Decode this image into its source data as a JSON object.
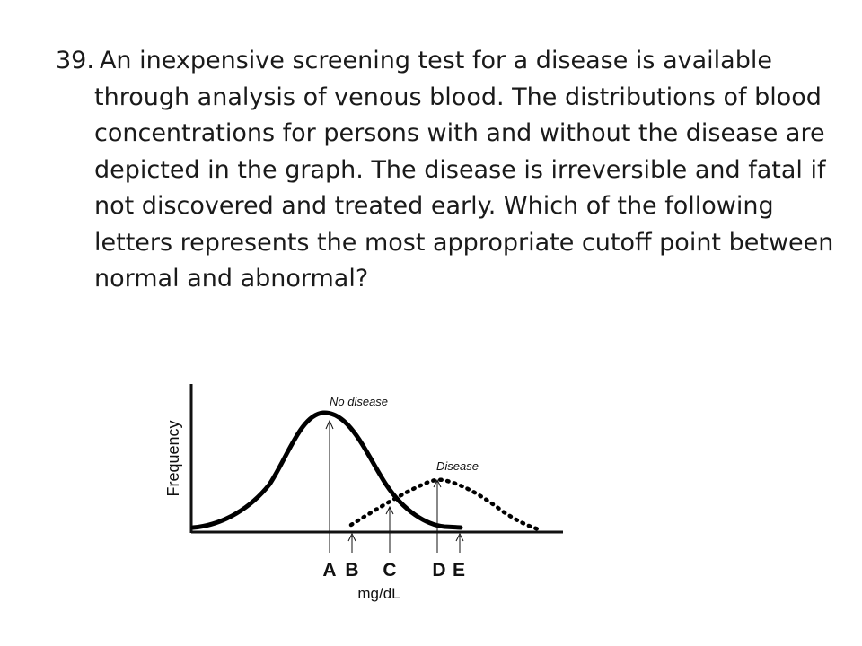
{
  "question": {
    "number": "39.",
    "text": "An inexpensive screening test for a disease is available through analysis of venous blood. The distributions of blood concentrations for persons with and without the disease are depicted in the graph. The disease is irreversible and fatal if not discovered and treated early. Which of the following letters represents the most appropriate cutoff point between normal and abnormal?"
  },
  "figure": {
    "ylabel": "Frequency",
    "xlabel": "mg/dL",
    "curve_labels": {
      "no_disease": "No disease",
      "disease": "Disease"
    },
    "markers": {
      "a": "A",
      "b": "B",
      "c": "C",
      "d": "D",
      "e": "E"
    }
  }
}
